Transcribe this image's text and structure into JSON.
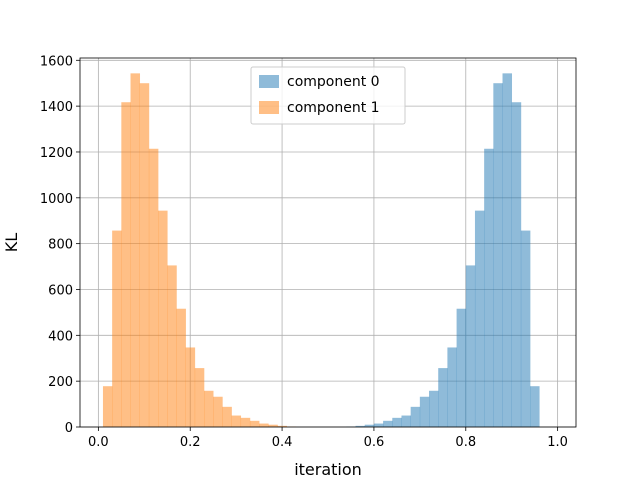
{
  "chart_data": {
    "type": "histogram",
    "title": "",
    "xlabel": "iteration",
    "ylabel": "KL",
    "xlim": [
      -0.04,
      1.04
    ],
    "ylim": [
      0,
      1610
    ],
    "xticks": [
      0.0,
      0.2,
      0.4,
      0.6,
      0.8,
      1.0
    ],
    "xtick_labels": [
      "0.0",
      "0.2",
      "0.4",
      "0.6",
      "0.8",
      "1.0"
    ],
    "yticks": [
      0,
      200,
      400,
      600,
      800,
      1000,
      1200,
      1400,
      1600
    ],
    "ytick_labels": [
      "0",
      "200",
      "400",
      "600",
      "800",
      "1000",
      "1200",
      "1400",
      "1600"
    ],
    "grid": true,
    "legend_position": "top-center",
    "bin_width": 0.02,
    "series": [
      {
        "name": "component 0",
        "color": "#1f77b4",
        "alpha": 0.5,
        "bin_start": 0.54,
        "values": [
          2,
          5,
          10,
          15,
          27,
          40,
          50,
          88,
          132,
          158,
          257,
          347,
          516,
          705,
          944,
          1214,
          1500,
          1543,
          1417,
          857,
          178
        ]
      },
      {
        "name": "component 1",
        "color": "#ff7f0e",
        "alpha": 0.5,
        "bin_start": 0.01,
        "values": [
          178,
          857,
          1417,
          1543,
          1500,
          1214,
          944,
          705,
          516,
          347,
          257,
          158,
          132,
          88,
          50,
          40,
          27,
          15,
          10,
          5,
          2
        ]
      }
    ]
  }
}
